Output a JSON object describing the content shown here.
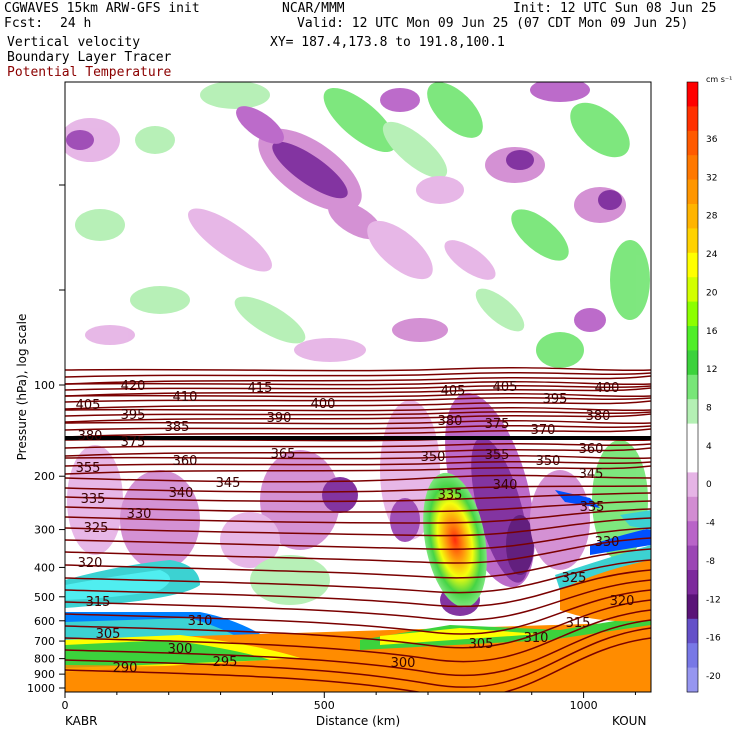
{
  "header": {
    "model": "CGWAVES 15km ARW-GFS init",
    "fcst_label": "Fcst:",
    "fcst_value": "24 h",
    "center": "NCAR/MMM",
    "init": "Init: 12 UTC Sun 08 Jun 25",
    "valid": "Valid: 12 UTC Mon 09 Jun 25 (07 CDT Mon 09 Jun 25)",
    "field1": "Vertical velocity",
    "xy": "XY= 187.4,173.8 to 191.8,100.1",
    "field2": "Boundary Layer Tracer",
    "field3": "Potential Temperature"
  },
  "colors": {
    "theta_line": "#7a0000",
    "tracer": "#ff8c00",
    "up_green": "#5ee05e",
    "down_purple": "#7b1fa2"
  },
  "chart_data": {
    "type": "heatmap",
    "xlabel": "Distance (km)",
    "ylabel": "Pressure (hPa), log scale",
    "xlim": [
      0,
      1130
    ],
    "x_ticks": [
      0,
      500,
      1000
    ],
    "y_ticks": [
      100,
      200,
      300,
      400,
      500,
      600,
      700,
      800,
      900,
      1000
    ],
    "y_scale": "log",
    "left_station": "KABR",
    "right_station": "KOUN",
    "colorbar": {
      "unit": "cm s⁻¹",
      "ticks": [
        36,
        32,
        28,
        24,
        20,
        16,
        12,
        8,
        4,
        0,
        -4,
        -8,
        -12,
        -16,
        -20
      ],
      "colors": [
        "#ff0000",
        "#ff3000",
        "#ff5a00",
        "#ff7800",
        "#ff9600",
        "#ffb400",
        "#ffd200",
        "#ffff00",
        "#d2ff00",
        "#8cff00",
        "#50ee28",
        "#3cd23c",
        "#78e678",
        "#b4f0b4",
        "#ffffff",
        "#ffffff",
        "#e6b4e6",
        "#d28cd2",
        "#b964c8",
        "#9b46b4",
        "#7d2a9c",
        "#5a1478",
        "#6450c8",
        "#7878e6",
        "#9696f0"
      ]
    },
    "theta_labels": [
      {
        "v": "420",
        "x": 133,
        "y": 385
      },
      {
        "v": "410",
        "x": 185,
        "y": 396
      },
      {
        "v": "415",
        "x": 260,
        "y": 387
      },
      {
        "v": "405",
        "x": 453,
        "y": 390
      },
      {
        "v": "405",
        "x": 505,
        "y": 386
      },
      {
        "v": "400",
        "x": 607,
        "y": 387
      },
      {
        "v": "405",
        "x": 88,
        "y": 404
      },
      {
        "v": "400",
        "x": 323,
        "y": 403
      },
      {
        "v": "395",
        "x": 555,
        "y": 398
      },
      {
        "v": "395",
        "x": 133,
        "y": 414
      },
      {
        "v": "390",
        "x": 279,
        "y": 417
      },
      {
        "v": "380",
        "x": 450,
        "y": 420
      },
      {
        "v": "375",
        "x": 497,
        "y": 423
      },
      {
        "v": "380",
        "x": 598,
        "y": 415
      },
      {
        "v": "385",
        "x": 177,
        "y": 426
      },
      {
        "v": "370",
        "x": 543,
        "y": 429
      },
      {
        "v": "380",
        "x": 90,
        "y": 435
      },
      {
        "v": "375",
        "x": 133,
        "y": 441
      },
      {
        "v": "360",
        "x": 591,
        "y": 448
      },
      {
        "v": "365",
        "x": 283,
        "y": 453
      },
      {
        "v": "350",
        "x": 433,
        "y": 456
      },
      {
        "v": "355",
        "x": 497,
        "y": 454
      },
      {
        "v": "360",
        "x": 185,
        "y": 460
      },
      {
        "v": "350",
        "x": 548,
        "y": 460
      },
      {
        "v": "355",
        "x": 88,
        "y": 467
      },
      {
        "v": "345",
        "x": 591,
        "y": 473
      },
      {
        "v": "345",
        "x": 228,
        "y": 482
      },
      {
        "v": "340",
        "x": 505,
        "y": 484
      },
      {
        "v": "340",
        "x": 181,
        "y": 492
      },
      {
        "v": "335",
        "x": 450,
        "y": 494
      },
      {
        "v": "335",
        "x": 93,
        "y": 498
      },
      {
        "v": "335",
        "x": 592,
        "y": 506
      },
      {
        "v": "330",
        "x": 139,
        "y": 513
      },
      {
        "v": "325",
        "x": 96,
        "y": 527
      },
      {
        "v": "330",
        "x": 607,
        "y": 541
      },
      {
        "v": "320",
        "x": 90,
        "y": 562
      },
      {
        "v": "325",
        "x": 574,
        "y": 577
      },
      {
        "v": "320",
        "x": 622,
        "y": 600
      },
      {
        "v": "315",
        "x": 98,
        "y": 601
      },
      {
        "v": "310",
        "x": 200,
        "y": 620
      },
      {
        "v": "315",
        "x": 578,
        "y": 622
      },
      {
        "v": "305",
        "x": 108,
        "y": 633
      },
      {
        "v": "310",
        "x": 536,
        "y": 637
      },
      {
        "v": "305",
        "x": 481,
        "y": 643
      },
      {
        "v": "300",
        "x": 180,
        "y": 648
      },
      {
        "v": "295",
        "x": 225,
        "y": 661
      },
      {
        "v": "300",
        "x": 403,
        "y": 662
      },
      {
        "v": "290",
        "x": 125,
        "y": 667
      }
    ]
  }
}
